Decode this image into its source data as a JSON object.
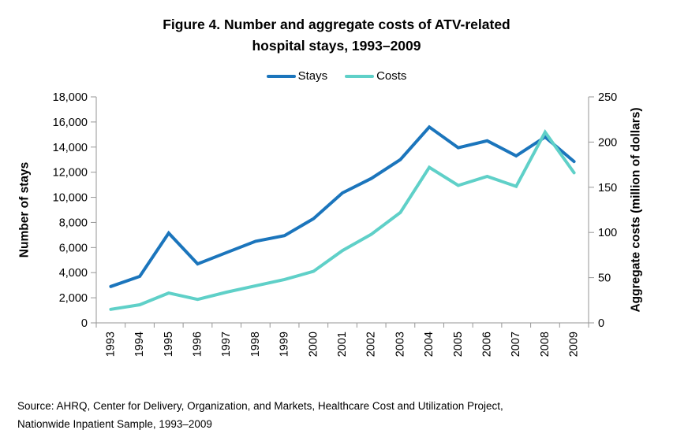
{
  "title": {
    "line1": "Figure 4. Number and aggregate costs of ATV-related",
    "line2": "hospital stays, 1993–2009"
  },
  "legend": [
    {
      "label": "Stays",
      "color": "#1B75BC"
    },
    {
      "label": "Costs",
      "color": "#5FD0C8"
    }
  ],
  "source": {
    "line1": "Source: AHRQ, Center for Delivery, Organization, and Markets, Healthcare Cost and Utilization Project,",
    "line2": "Nationwide Inpatient Sample, 1993–2009"
  },
  "chart_data": {
    "type": "line",
    "categories": [
      "1993",
      "1994",
      "1995",
      "1996",
      "1997",
      "1998",
      "1999",
      "2000",
      "2001",
      "2002",
      "2003",
      "2004",
      "2005",
      "2006",
      "2007",
      "2008",
      "2009"
    ],
    "series": [
      {
        "name": "Stays",
        "axis": "left",
        "color": "#1B75BC",
        "values": [
          2900,
          3700,
          7150,
          4700,
          5600,
          6500,
          6950,
          8300,
          10350,
          11500,
          13000,
          15600,
          13950,
          14500,
          13300,
          14800,
          12850
        ]
      },
      {
        "name": "Costs",
        "axis": "right",
        "color": "#5FD0C8",
        "values": [
          15,
          20,
          33,
          26,
          34,
          41,
          48,
          57,
          80,
          98,
          122,
          172,
          152,
          162,
          151,
          211,
          166
        ]
      }
    ],
    "left_axis": {
      "label": "Number of stays",
      "min": 0,
      "max": 18000,
      "step": 2000
    },
    "right_axis": {
      "label": "Aggregate costs (million of dollars)",
      "min": 0,
      "max": 250,
      "step": 50
    },
    "grid": false,
    "legend_position": "top",
    "axis_color": "#969696",
    "tick_label_color": "#000000"
  }
}
